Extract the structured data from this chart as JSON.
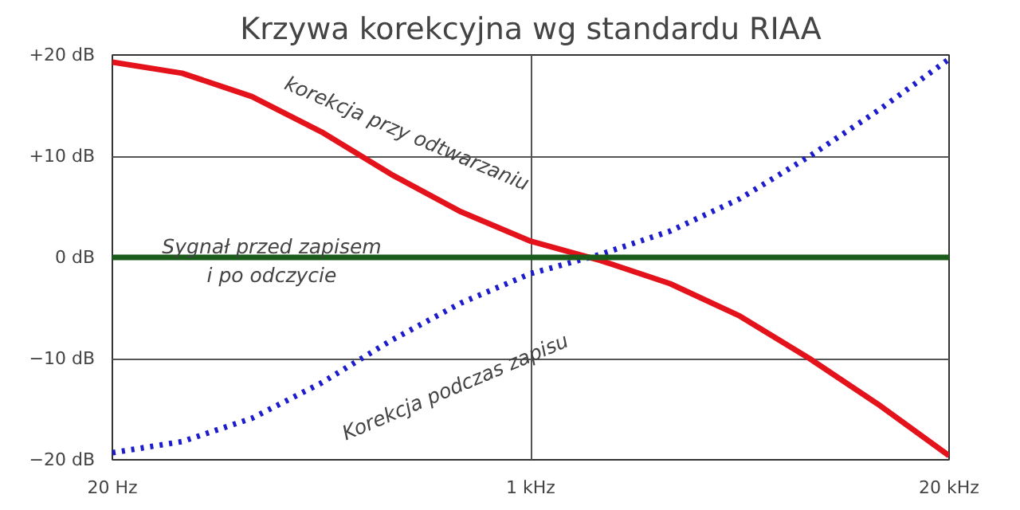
{
  "chart_data": {
    "type": "line",
    "title": "Krzywa korekcyjna wg standardu RIAA",
    "grid": true,
    "categories": [
      "20 Hz",
      null,
      null,
      null,
      null,
      null,
      "1 kHz",
      null,
      null,
      null,
      null,
      null,
      "20 kHz"
    ],
    "series": [
      {
        "color": "#e3121b",
        "line_style": "solid",
        "values": [
          19.3,
          18.2,
          15.9,
          12.4,
          8.2,
          4.5,
          1.6,
          -0.3,
          -2.6,
          -5.8,
          -10.0,
          -14.6,
          -19.6
        ]
      },
      {
        "color": "#1c1ccc",
        "line_style": "dotted",
        "values": [
          -19.3,
          -18.2,
          -15.9,
          -12.4,
          -8.2,
          -4.5,
          -1.6,
          0.3,
          2.6,
          5.8,
          10.0,
          14.6,
          19.6
        ]
      },
      {
        "color": "#1a5c1a",
        "line_style": "solid",
        "values": [
          0,
          0,
          0,
          0,
          0,
          0,
          0,
          0,
          0,
          0,
          0,
          0,
          0
        ]
      }
    ],
    "ylim": [
      -20,
      20
    ],
    "yticks": [
      {
        "value": 20,
        "label": "+20 dB"
      },
      {
        "value": 10,
        "label": "+10 dB"
      },
      {
        "value": 0,
        "label": "0 dB"
      },
      {
        "value": -10,
        "label": "−10 dB"
      },
      {
        "value": -20,
        "label": "−20 dB"
      }
    ],
    "annotations": [
      "korekcja przy odtwarzaniu",
      "Sygnał przed zapisem\ni po odczycie",
      "Korekcja podczas zapisu"
    ]
  }
}
